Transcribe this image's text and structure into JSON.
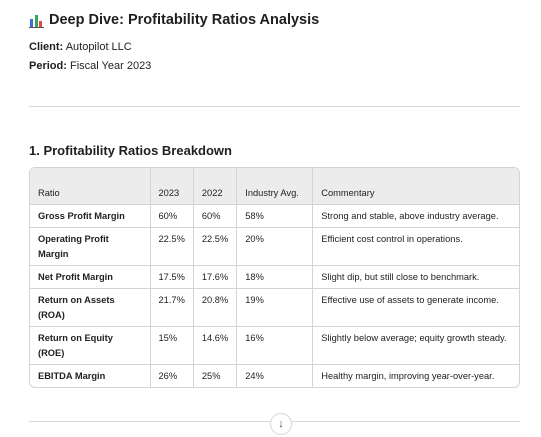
{
  "header": {
    "icon": "bar-chart-icon",
    "title": "Deep Dive: Profitability Ratios Analysis"
  },
  "meta": {
    "client_label": "Client:",
    "client_value": "Autopilot LLC",
    "period_label": "Period:",
    "period_value": "Fiscal Year 2023"
  },
  "section": {
    "title": "1. Profitability Ratios Breakdown"
  },
  "table": {
    "headers": [
      "Ratio",
      "2023",
      "2022",
      "Industry Avg.",
      "Commentary"
    ],
    "rows": [
      [
        "Gross Profit Margin",
        "60%",
        "60%",
        "58%",
        "Strong and stable, above industry average."
      ],
      [
        "Operating Profit Margin",
        "22.5%",
        "22.5%",
        "20%",
        "Efficient cost control in operations."
      ],
      [
        "Net Profit Margin",
        "17.5%",
        "17.6%",
        "18%",
        "Slight dip, but still close to benchmark."
      ],
      [
        "Return on Assets (ROA)",
        "21.7%",
        "20.8%",
        "19%",
        "Effective use of assets to generate income."
      ],
      [
        "Return on Equity (ROE)",
        "15%",
        "14.6%",
        "16%",
        "Slightly below average; equity growth steady."
      ],
      [
        "EBITDA Margin",
        "26%",
        "25%",
        "24%",
        "Healthy margin, improving year-over-year."
      ]
    ]
  },
  "scroll_button": {
    "icon": "arrow-down-icon",
    "glyph": "↓"
  }
}
